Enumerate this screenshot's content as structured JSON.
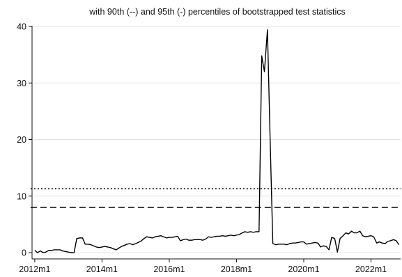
{
  "chart_data": {
    "type": "line",
    "title": "with 90th (--) and 95th (-) percentiles of bootstrapped test statistics",
    "xlabel": "",
    "ylabel": "",
    "xlim": [
      2011.92,
      2022.88
    ],
    "ylim": [
      0,
      40
    ],
    "grid": true,
    "x_ticks": [
      {
        "label": "2012m1",
        "value": 2012
      },
      {
        "label": "2014m1",
        "value": 2014
      },
      {
        "label": "2016m1",
        "value": 2016
      },
      {
        "label": "2018m1",
        "value": 2018
      },
      {
        "label": "2020m1",
        "value": 2020
      },
      {
        "label": "2022m1",
        "value": 2022
      }
    ],
    "y_ticks": [
      {
        "label": "0",
        "value": 0
      },
      {
        "label": "10",
        "value": 10
      },
      {
        "label": "20",
        "value": 20
      },
      {
        "label": "30",
        "value": 30
      },
      {
        "label": "40",
        "value": 40
      }
    ],
    "reference_lines": [
      {
        "style": "dashed",
        "value": 8.0
      },
      {
        "style": "dotted",
        "value": 11.3
      }
    ],
    "series": [
      {
        "style": "solid",
        "color": "#000000",
        "points": [
          [
            2012.0,
            0.4
          ],
          [
            2012.08,
            0.0
          ],
          [
            2012.17,
            0.3
          ],
          [
            2012.25,
            0.0
          ],
          [
            2012.33,
            0.1
          ],
          [
            2012.42,
            0.4
          ],
          [
            2012.5,
            0.4
          ],
          [
            2012.58,
            0.5
          ],
          [
            2012.67,
            0.5
          ],
          [
            2012.75,
            0.5
          ],
          [
            2012.83,
            0.3
          ],
          [
            2012.92,
            0.2
          ],
          [
            2013.0,
            0.1
          ],
          [
            2013.08,
            0.0
          ],
          [
            2013.17,
            0.0
          ],
          [
            2013.25,
            2.5
          ],
          [
            2013.33,
            2.6
          ],
          [
            2013.42,
            2.6
          ],
          [
            2013.5,
            1.5
          ],
          [
            2013.58,
            1.5
          ],
          [
            2013.67,
            1.4
          ],
          [
            2013.75,
            1.2
          ],
          [
            2013.83,
            1.0
          ],
          [
            2013.92,
            0.9
          ],
          [
            2014.0,
            1.0
          ],
          [
            2014.08,
            1.1
          ],
          [
            2014.17,
            1.0
          ],
          [
            2014.25,
            0.9
          ],
          [
            2014.33,
            0.7
          ],
          [
            2014.42,
            0.5
          ],
          [
            2014.5,
            0.8
          ],
          [
            2014.58,
            1.1
          ],
          [
            2014.67,
            1.3
          ],
          [
            2014.75,
            1.5
          ],
          [
            2014.83,
            1.6
          ],
          [
            2014.92,
            1.4
          ],
          [
            2015.0,
            1.6
          ],
          [
            2015.08,
            1.8
          ],
          [
            2015.17,
            2.1
          ],
          [
            2015.25,
            2.5
          ],
          [
            2015.33,
            2.8
          ],
          [
            2015.42,
            2.7
          ],
          [
            2015.5,
            2.6
          ],
          [
            2015.58,
            2.8
          ],
          [
            2015.67,
            2.9
          ],
          [
            2015.75,
            3.0
          ],
          [
            2015.83,
            2.8
          ],
          [
            2015.92,
            2.6
          ],
          [
            2016.0,
            2.7
          ],
          [
            2016.08,
            2.7
          ],
          [
            2016.17,
            2.8
          ],
          [
            2016.25,
            2.9
          ],
          [
            2016.33,
            2.1
          ],
          [
            2016.42,
            2.3
          ],
          [
            2016.5,
            2.4
          ],
          [
            2016.58,
            2.2
          ],
          [
            2016.67,
            2.2
          ],
          [
            2016.75,
            2.3
          ],
          [
            2016.83,
            2.3
          ],
          [
            2016.92,
            2.3
          ],
          [
            2017.0,
            2.2
          ],
          [
            2017.08,
            2.4
          ],
          [
            2017.17,
            2.8
          ],
          [
            2017.25,
            2.7
          ],
          [
            2017.33,
            2.8
          ],
          [
            2017.42,
            2.9
          ],
          [
            2017.5,
            2.9
          ],
          [
            2017.58,
            3.0
          ],
          [
            2017.67,
            2.9
          ],
          [
            2017.75,
            3.0
          ],
          [
            2017.83,
            3.1
          ],
          [
            2017.92,
            3.0
          ],
          [
            2018.0,
            3.1
          ],
          [
            2018.08,
            3.2
          ],
          [
            2018.17,
            3.5
          ],
          [
            2018.25,
            3.7
          ],
          [
            2018.33,
            3.6
          ],
          [
            2018.42,
            3.7
          ],
          [
            2018.5,
            3.6
          ],
          [
            2018.58,
            3.7
          ],
          [
            2018.67,
            3.7
          ],
          [
            2018.75,
            34.8
          ],
          [
            2018.83,
            32.0
          ],
          [
            2018.92,
            39.4
          ],
          [
            2019.0,
            20.0
          ],
          [
            2019.08,
            1.6
          ],
          [
            2019.17,
            1.4
          ],
          [
            2019.25,
            1.5
          ],
          [
            2019.33,
            1.5
          ],
          [
            2019.42,
            1.5
          ],
          [
            2019.5,
            1.4
          ],
          [
            2019.58,
            1.6
          ],
          [
            2019.67,
            1.7
          ],
          [
            2019.75,
            1.7
          ],
          [
            2019.83,
            1.8
          ],
          [
            2019.92,
            1.9
          ],
          [
            2020.0,
            1.9
          ],
          [
            2020.08,
            1.5
          ],
          [
            2020.17,
            1.6
          ],
          [
            2020.25,
            1.7
          ],
          [
            2020.33,
            1.8
          ],
          [
            2020.42,
            1.7
          ],
          [
            2020.5,
            1.0
          ],
          [
            2020.58,
            1.2
          ],
          [
            2020.67,
            1.1
          ],
          [
            2020.75,
            0.5
          ],
          [
            2020.83,
            2.7
          ],
          [
            2020.92,
            2.5
          ],
          [
            2021.0,
            0.1
          ],
          [
            2021.08,
            2.5
          ],
          [
            2021.17,
            3.0
          ],
          [
            2021.25,
            3.5
          ],
          [
            2021.33,
            3.3
          ],
          [
            2021.42,
            3.8
          ],
          [
            2021.5,
            3.5
          ],
          [
            2021.58,
            3.5
          ],
          [
            2021.67,
            3.8
          ],
          [
            2021.75,
            3.0
          ],
          [
            2021.83,
            2.8
          ],
          [
            2021.92,
            2.9
          ],
          [
            2022.0,
            3.0
          ],
          [
            2022.08,
            2.8
          ],
          [
            2022.17,
            1.7
          ],
          [
            2022.25,
            1.9
          ],
          [
            2022.33,
            1.7
          ],
          [
            2022.42,
            1.6
          ],
          [
            2022.5,
            2.0
          ],
          [
            2022.58,
            2.1
          ],
          [
            2022.67,
            2.3
          ],
          [
            2022.75,
            2.1
          ],
          [
            2022.83,
            1.4
          ]
        ]
      }
    ]
  }
}
